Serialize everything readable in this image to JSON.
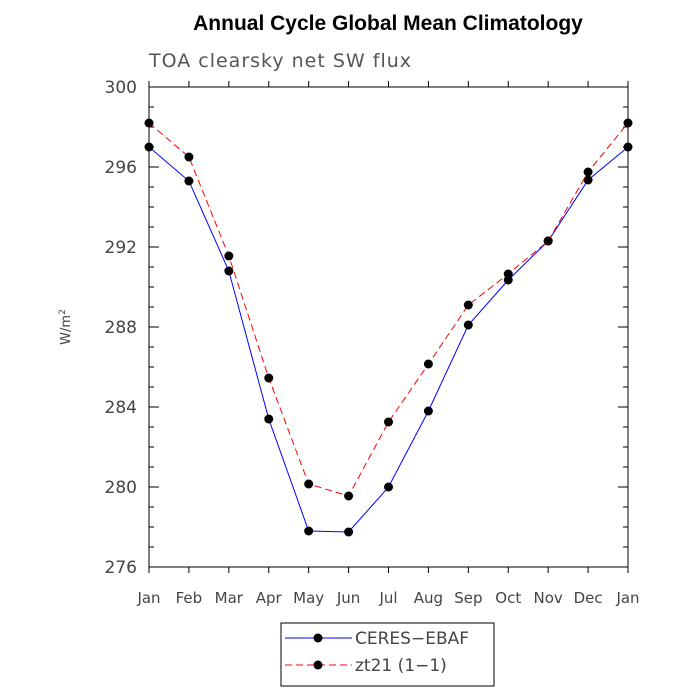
{
  "chart_data": {
    "type": "line",
    "title": "Annual Cycle Global Mean Climatology",
    "subtitle": "TOA clearsky net SW flux",
    "xlabel": "",
    "ylabel": "W/m²",
    "categories": [
      "Jan",
      "Feb",
      "Mar",
      "Apr",
      "May",
      "Jun",
      "Jul",
      "Aug",
      "Sep",
      "Oct",
      "Nov",
      "Dec",
      "Jan"
    ],
    "ylim": [
      276,
      300
    ],
    "yticks": [
      "276",
      "280",
      "284",
      "288",
      "292",
      "296",
      "300"
    ],
    "grid": false,
    "legend_position": "bottom-center",
    "series": [
      {
        "name": "CERES−EBAF",
        "color": "#0000ff",
        "line_style": "solid",
        "marker": "filled-circle",
        "values": [
          297.0,
          295.3,
          290.8,
          283.4,
          277.8,
          277.75,
          280.0,
          283.8,
          288.1,
          290.35,
          292.3,
          295.35,
          297.0
        ]
      },
      {
        "name": "zt21 (1−1)",
        "color": "#ff0000",
        "line_style": "dashed",
        "marker": "filled-circle",
        "values": [
          298.2,
          296.5,
          291.55,
          285.45,
          280.15,
          279.55,
          283.25,
          286.15,
          289.1,
          290.65,
          292.3,
          295.75,
          298.2
        ]
      }
    ]
  }
}
